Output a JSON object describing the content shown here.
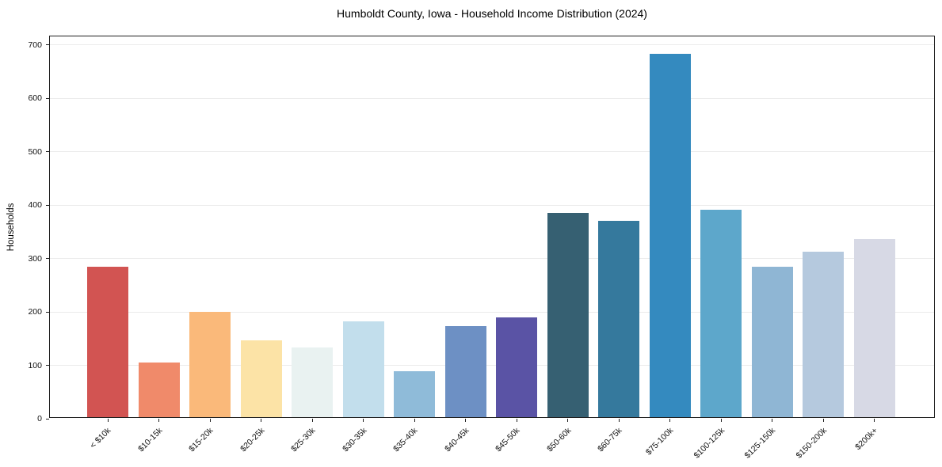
{
  "chart_data": {
    "type": "bar",
    "title": "Humboldt County, Iowa - Household Income Distribution (2024)",
    "xlabel": "",
    "ylabel": "Households",
    "categories": [
      "< $10k",
      "$10-15k",
      "$15-20k",
      "$20-25k",
      "$25-30k",
      "$30-35k",
      "$35-40k",
      "$40-45k",
      "$45-50k",
      "$50-60k",
      "$60-75k",
      "$75-100k",
      "$100-125k",
      "$125-150k",
      "$150-200k",
      "$200k+"
    ],
    "values": [
      282,
      103,
      197,
      144,
      130,
      180,
      86,
      170,
      187,
      382,
      367,
      680,
      388,
      281,
      310,
      334
    ],
    "bar_colors": [
      "#d25452",
      "#f08a6a",
      "#fab97a",
      "#fce3a6",
      "#e9f2f1",
      "#c2deec",
      "#8fbbd9",
      "#6d90c4",
      "#5a53a5",
      "#366072",
      "#35799d",
      "#348abf",
      "#5da7cb",
      "#8fb6d4",
      "#b5c9de",
      "#d7d9e5"
    ],
    "yticks": [
      0,
      100,
      200,
      300,
      400,
      500,
      600,
      700
    ],
    "ylim": [
      0,
      716
    ],
    "grid": true,
    "legend_position": "none",
    "x_tick_rotation_deg": 45
  },
  "style": {
    "background": "#ffffff",
    "grid_color": "#ebebeb",
    "spine_color": "#1f1f1f",
    "text_color": "#111111"
  }
}
